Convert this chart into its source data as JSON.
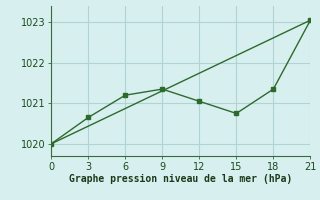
{
  "line1_x": [
    0,
    3,
    6,
    9,
    12,
    15,
    18,
    21
  ],
  "line1_y": [
    1020.0,
    1020.65,
    1021.2,
    1021.35,
    1021.05,
    1020.75,
    1021.35,
    1023.05
  ],
  "line2_x": [
    0,
    21
  ],
  "line2_y": [
    1020.0,
    1023.05
  ],
  "color": "#2d6a2d",
  "bg_color": "#d8efef",
  "grid_color": "#b0d4d4",
  "xlabel": "Graphe pression niveau de la mer (hPa)",
  "xlim": [
    0,
    21
  ],
  "ylim": [
    1019.7,
    1023.4
  ],
  "xticks": [
    0,
    3,
    6,
    9,
    12,
    15,
    18,
    21
  ],
  "yticks": [
    1020,
    1021,
    1022,
    1023
  ],
  "markersize": 3.5,
  "linewidth": 1.0
}
